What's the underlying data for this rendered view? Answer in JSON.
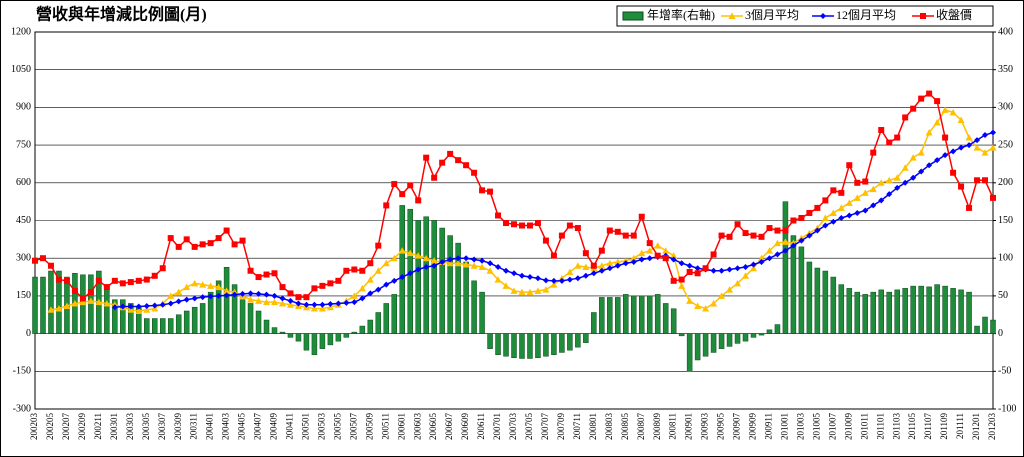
{
  "chart_data": {
    "type": "combo",
    "title": "營收與年增減比例圖(月)",
    "categories": [
      "200203",
      null,
      "200205",
      null,
      "200207",
      null,
      "200209",
      null,
      "200211",
      null,
      "200301",
      null,
      "200303",
      null,
      "200305",
      null,
      "200307",
      null,
      "200309",
      null,
      "200311",
      null,
      "200401",
      null,
      "200403",
      null,
      "200405",
      null,
      "200407",
      null,
      "200409",
      null,
      "200411",
      null,
      "200501",
      null,
      "200503",
      null,
      "200505",
      null,
      "200507",
      null,
      "200509",
      null,
      "200511",
      null,
      "200601",
      null,
      "200603",
      null,
      "200605",
      null,
      "200607",
      null,
      "200609",
      null,
      "200611",
      null,
      "200701",
      null,
      "200703",
      null,
      "200705",
      null,
      "200707",
      null,
      "200709",
      null,
      "200711",
      null,
      "200801",
      null,
      "200803",
      null,
      "200805",
      null,
      "200807",
      null,
      "200809",
      null,
      "200811",
      null,
      "200901",
      null,
      "200903",
      null,
      "200905",
      null,
      "200907",
      null,
      "200909",
      null,
      "200911",
      null,
      "201001",
      null,
      "201003",
      null,
      "201005",
      null,
      "201007",
      null,
      "201009",
      null,
      "201011",
      null,
      "201101",
      null,
      "201103",
      null,
      "201105",
      null,
      "201107",
      null,
      "201109",
      null,
      "201111",
      null,
      "201201",
      null,
      "201203"
    ],
    "series": [
      {
        "name": "年增率(右軸)",
        "mark": "bar",
        "axis": "y2",
        "color": "#1e8c3a",
        "values": [
          75,
          75,
          83,
          83,
          75,
          80,
          78,
          78,
          83,
          65,
          45,
          45,
          40,
          35,
          20,
          20,
          20,
          20,
          25,
          30,
          35,
          40,
          55,
          70,
          88,
          65,
          45,
          40,
          30,
          18,
          8,
          2,
          -5,
          -10,
          -22,
          -28,
          -20,
          -15,
          -10,
          -5,
          2,
          10,
          18,
          28,
          40,
          52,
          170,
          165,
          150,
          155,
          150,
          140,
          130,
          120,
          95,
          70,
          55,
          -20,
          -28,
          -30,
          -32,
          -33,
          -33,
          -32,
          -30,
          -28,
          -25,
          -22,
          -18,
          -12,
          28,
          48,
          48,
          48,
          52,
          50,
          50,
          50,
          52,
          40,
          33,
          -3,
          -50,
          -35,
          -30,
          -25,
          -20,
          -17,
          -13,
          -10,
          -5,
          -2,
          5,
          12,
          175,
          130,
          115,
          95,
          87,
          83,
          75,
          65,
          60,
          55,
          52,
          55,
          58,
          55,
          58,
          60,
          63,
          63,
          62,
          65,
          63,
          60,
          58,
          55,
          10,
          22,
          18
        ]
      },
      {
        "name": "3個月平均",
        "mark": "triangle",
        "color": "#ffc000",
        "values": [
          null,
          null,
          95,
          100,
          110,
          120,
          125,
          130,
          125,
          120,
          115,
          105,
          95,
          90,
          95,
          100,
          120,
          150,
          165,
          185,
          200,
          195,
          190,
          185,
          170,
          165,
          150,
          135,
          130,
          125,
          125,
          120,
          115,
          110,
          105,
          100,
          100,
          105,
          115,
          130,
          150,
          180,
          215,
          250,
          280,
          300,
          330,
          320,
          310,
          300,
          290,
          285,
          280,
          280,
          275,
          270,
          265,
          250,
          215,
          190,
          170,
          165,
          165,
          170,
          175,
          195,
          220,
          245,
          270,
          265,
          260,
          270,
          280,
          285,
          290,
          300,
          320,
          330,
          350,
          330,
          310,
          190,
          130,
          110,
          100,
          120,
          150,
          175,
          200,
          230,
          260,
          300,
          330,
          360,
          365,
          360,
          380,
          400,
          420,
          460,
          480,
          500,
          520,
          540,
          560,
          575,
          600,
          610,
          620,
          660,
          700,
          720,
          800,
          840,
          890,
          880,
          850,
          780,
          740,
          720,
          740
        ]
      },
      {
        "name": "12個月平均",
        "mark": "diamond",
        "color": "#0000ff",
        "values": [
          null,
          null,
          null,
          null,
          null,
          null,
          null,
          null,
          null,
          null,
          105,
          108,
          108,
          108,
          110,
          112,
          115,
          120,
          128,
          135,
          140,
          145,
          148,
          150,
          152,
          155,
          158,
          160,
          158,
          155,
          150,
          140,
          130,
          120,
          115,
          115,
          115,
          118,
          120,
          122,
          125,
          140,
          160,
          175,
          195,
          210,
          225,
          240,
          255,
          265,
          270,
          285,
          295,
          300,
          300,
          295,
          290,
          280,
          265,
          250,
          240,
          230,
          225,
          220,
          212,
          210,
          210,
          215,
          220,
          230,
          240,
          250,
          260,
          270,
          280,
          285,
          295,
          300,
          305,
          310,
          295,
          280,
          270,
          260,
          255,
          250,
          250,
          255,
          260,
          265,
          275,
          285,
          300,
          315,
          330,
          350,
          370,
          390,
          410,
          430,
          445,
          460,
          470,
          480,
          490,
          510,
          530,
          555,
          580,
          600,
          620,
          645,
          670,
          690,
          710,
          725,
          740,
          750,
          770,
          790,
          800
        ]
      },
      {
        "name": "收盤價",
        "mark": "square",
        "color": "#ff0000",
        "values": [
          290,
          300,
          270,
          215,
          210,
          170,
          140,
          165,
          210,
          185,
          210,
          200,
          205,
          210,
          215,
          230,
          260,
          380,
          345,
          375,
          345,
          355,
          360,
          380,
          410,
          355,
          370,
          250,
          225,
          235,
          240,
          185,
          160,
          145,
          145,
          180,
          190,
          200,
          210,
          250,
          255,
          250,
          280,
          350,
          510,
          595,
          555,
          590,
          530,
          700,
          620,
          680,
          715,
          690,
          670,
          640,
          570,
          565,
          470,
          440,
          435,
          430,
          430,
          440,
          370,
          310,
          390,
          430,
          420,
          320,
          270,
          330,
          410,
          405,
          390,
          390,
          465,
          360,
          310,
          300,
          210,
          215,
          245,
          240,
          260,
          315,
          390,
          385,
          435,
          400,
          390,
          385,
          420,
          410,
          410,
          450,
          460,
          480,
          500,
          530,
          570,
          560,
          670,
          600,
          605,
          720,
          810,
          760,
          780,
          860,
          895,
          935,
          955,
          925,
          780,
          640,
          585,
          500,
          610,
          610,
          540
        ]
      }
    ],
    "ylim": [
      -300,
      1200
    ],
    "yticks": [
      -300,
      -150,
      0,
      150,
      300,
      450,
      600,
      750,
      900,
      1050,
      1200
    ],
    "y2lim": [
      -100,
      400
    ],
    "y2ticks": [
      -100,
      -50,
      0,
      50,
      100,
      150,
      200,
      250,
      300,
      350,
      400
    ],
    "grid": true,
    "legend": "top-right"
  }
}
